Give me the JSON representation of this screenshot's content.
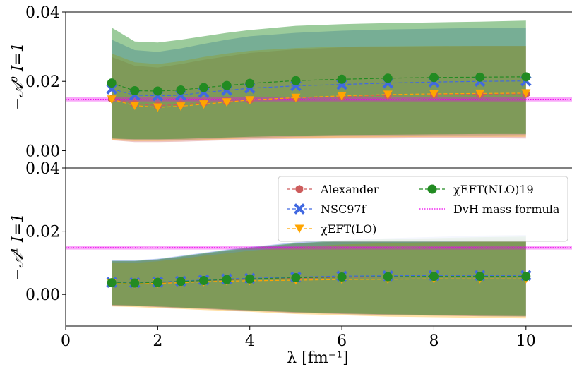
{
  "chart_data": [
    {
      "type": "line",
      "panel": "top",
      "ylabel": "−𝒜⁰ I=1",
      "xlim": [
        0,
        11
      ],
      "ylim": [
        -0.005,
        0.04
      ],
      "yticks": [
        "0.00",
        "0.02",
        "0.04"
      ],
      "ytick_values": [
        0.0,
        0.02,
        0.04
      ],
      "grid": false,
      "x": [
        1,
        1.5,
        2,
        2.5,
        3,
        3.5,
        4,
        5,
        6,
        7,
        8,
        9,
        10
      ],
      "series": [
        {
          "name": "Alexander",
          "color": "#cd5c5c",
          "marker": "hexagon",
          "values": [
            0.015,
            0.0135,
            0.013,
            0.0133,
            0.0138,
            0.0142,
            0.0146,
            0.0152,
            0.0156,
            0.016,
            0.0162,
            0.0163,
            0.0164
          ],
          "band_low": [
            0.003,
            0.0025,
            0.0025,
            0.0026,
            0.0028,
            0.003,
            0.0032,
            0.0034,
            0.0035,
            0.0035,
            0.0036,
            0.0036,
            0.0035
          ],
          "band_high": [
            0.027,
            0.0245,
            0.024,
            0.025,
            0.0262,
            0.0272,
            0.0282,
            0.0292,
            0.0298,
            0.03,
            0.0301,
            0.0302,
            0.0302
          ]
        },
        {
          "name": "NSC97f",
          "color": "#4169e1",
          "marker": "x",
          "values": [
            0.0178,
            0.016,
            0.0158,
            0.016,
            0.0168,
            0.0174,
            0.018,
            0.0187,
            0.0191,
            0.0195,
            0.0198,
            0.02,
            0.0201
          ],
          "band_low": [
            0.0035,
            0.003,
            0.003,
            0.0031,
            0.0033,
            0.0035,
            0.0037,
            0.004,
            0.0042,
            0.0043,
            0.0044,
            0.0044,
            0.0045
          ],
          "band_high": [
            0.032,
            0.029,
            0.0285,
            0.0295,
            0.0308,
            0.032,
            0.033,
            0.034,
            0.0346,
            0.035,
            0.0352,
            0.0354,
            0.0355
          ]
        },
        {
          "name": "χEFT(LO)",
          "color": "#ffa500",
          "marker": "triangle-down",
          "values": [
            0.0148,
            0.013,
            0.0125,
            0.0128,
            0.0134,
            0.014,
            0.0146,
            0.0153,
            0.0158,
            0.0162,
            0.0164,
            0.0165,
            0.0166
          ],
          "band_low": [
            0.003,
            0.0028,
            0.0028,
            0.0029,
            0.0031,
            0.0033,
            0.0035,
            0.0037,
            0.0038,
            0.0039,
            0.004,
            0.004,
            0.004
          ],
          "band_high": [
            0.028,
            0.0255,
            0.025,
            0.0258,
            0.027,
            0.028,
            0.0288,
            0.0296,
            0.03,
            0.0301,
            0.0302,
            0.0302,
            0.0302
          ]
        },
        {
          "name": "χEFT(NLO)19",
          "color": "#228b22",
          "marker": "circle",
          "values": [
            0.0195,
            0.0173,
            0.0172,
            0.0175,
            0.0182,
            0.0188,
            0.0194,
            0.0202,
            0.0206,
            0.0209,
            0.0211,
            0.0212,
            0.0213
          ],
          "band_low": [
            0.0035,
            0.0033,
            0.0033,
            0.0034,
            0.0036,
            0.0038,
            0.004,
            0.0043,
            0.0045,
            0.0046,
            0.0047,
            0.0048,
            0.0048
          ],
          "band_high": [
            0.0355,
            0.0315,
            0.0312,
            0.032,
            0.033,
            0.034,
            0.0348,
            0.036,
            0.0365,
            0.0368,
            0.037,
            0.0372,
            0.0375
          ]
        }
      ],
      "hline": {
        "name": "DvH mass formula",
        "value": 0.0148,
        "band": 0.0006,
        "color": "#ee00ee"
      }
    },
    {
      "type": "line",
      "panel": "bottom",
      "ylabel": "−𝒜¹ I=1",
      "xlabel": "λ [fm⁻¹]",
      "xlim": [
        0,
        11
      ],
      "ylim": [
        -0.01,
        0.04
      ],
      "xticks": [
        "0",
        "2",
        "4",
        "6",
        "8",
        "10"
      ],
      "xtick_values": [
        0,
        2,
        4,
        6,
        8,
        10
      ],
      "yticks": [
        "0.00",
        "0.02",
        "0.04"
      ],
      "ytick_values": [
        0.0,
        0.02,
        0.04
      ],
      "grid": false,
      "x": [
        1,
        1.5,
        2,
        2.5,
        3,
        3.5,
        4,
        5,
        6,
        7,
        8,
        9,
        10
      ],
      "series": [
        {
          "name": "Alexander",
          "color": "#cd5c5c",
          "marker": "hexagon",
          "values": [
            0.0037,
            0.0035,
            0.0037,
            0.004,
            0.0044,
            0.0046,
            0.0048,
            0.0051,
            0.0054,
            0.0055,
            0.0056,
            0.0056,
            0.0056
          ],
          "band_low": [
            -0.0035,
            -0.0037,
            -0.004,
            -0.0043,
            -0.0046,
            -0.0049,
            -0.0052,
            -0.0058,
            -0.0062,
            -0.0065,
            -0.0067,
            -0.0069,
            -0.007
          ],
          "band_high": [
            0.0105,
            0.0105,
            0.011,
            0.0118,
            0.0128,
            0.0137,
            0.0146,
            0.016,
            0.0168,
            0.0172,
            0.0175,
            0.0177,
            0.0178
          ]
        },
        {
          "name": "NSC97f",
          "color": "#4169e1",
          "marker": "x",
          "values": [
            0.0038,
            0.0037,
            0.0039,
            0.0042,
            0.0046,
            0.0049,
            0.0051,
            0.0055,
            0.0058,
            0.0059,
            0.006,
            0.006,
            0.006
          ],
          "band_low": [
            -0.0035,
            -0.0037,
            -0.004,
            -0.0043,
            -0.0046,
            -0.0049,
            -0.0052,
            -0.0058,
            -0.0062,
            -0.0065,
            -0.0067,
            -0.0069,
            -0.007
          ],
          "band_high": [
            0.0108,
            0.0108,
            0.0113,
            0.0122,
            0.0132,
            0.0142,
            0.015,
            0.0165,
            0.0172,
            0.0178,
            0.0182,
            0.0186,
            0.0188
          ]
        },
        {
          "name": "χEFT(LO)",
          "color": "#ffa500",
          "marker": "triangle-down",
          "values": [
            0.0036,
            0.0034,
            0.0035,
            0.0037,
            0.004,
            0.0042,
            0.0043,
            0.0045,
            0.0047,
            0.0048,
            0.0049,
            0.0049,
            0.0049
          ],
          "band_low": [
            -0.0038,
            -0.004,
            -0.0043,
            -0.0046,
            -0.0049,
            -0.0052,
            -0.0055,
            -0.0062,
            -0.0066,
            -0.007,
            -0.0072,
            -0.0074,
            -0.0076
          ],
          "band_high": [
            0.01,
            0.01,
            0.0105,
            0.0113,
            0.0122,
            0.013,
            0.0138,
            0.015,
            0.0158,
            0.0162,
            0.0165,
            0.0167,
            0.0168
          ]
        },
        {
          "name": "χEFT(NLO)19",
          "color": "#228b22",
          "marker": "circle",
          "values": [
            0.0037,
            0.0036,
            0.0038,
            0.0041,
            0.0044,
            0.0047,
            0.0049,
            0.0053,
            0.0055,
            0.0056,
            0.0057,
            0.0057,
            0.0057
          ],
          "band_low": [
            -0.0033,
            -0.0035,
            -0.0038,
            -0.0041,
            -0.0044,
            -0.0047,
            -0.005,
            -0.0056,
            -0.006,
            -0.0063,
            -0.0065,
            -0.0067,
            -0.0068
          ],
          "band_high": [
            0.0106,
            0.0106,
            0.0111,
            0.012,
            0.013,
            0.014,
            0.0148,
            0.0162,
            0.017,
            0.0175,
            0.0178,
            0.0181,
            0.0183
          ]
        }
      ],
      "hline": {
        "name": "DvH mass formula",
        "value": 0.0148,
        "band": 0.0006,
        "color": "#ee00ee"
      }
    }
  ],
  "legend": {
    "placement": "upper-right of bottom panel",
    "columns": 2,
    "entries": [
      {
        "label": "Alexander",
        "color": "#cd5c5c",
        "marker": "hexagon",
        "style": "dashed"
      },
      {
        "label": "NSC97f",
        "color": "#4169e1",
        "marker": "x",
        "style": "dashed"
      },
      {
        "label": "χEFT(LO)",
        "color": "#ffa500",
        "marker": "triangle-down",
        "style": "dashed"
      },
      {
        "label": "χEFT(NLO)19",
        "color": "#228b22",
        "marker": "circle",
        "style": "dashed"
      },
      {
        "label": "DvH mass formula",
        "color": "#ee00ee",
        "marker": "none",
        "style": "dotted"
      }
    ]
  }
}
